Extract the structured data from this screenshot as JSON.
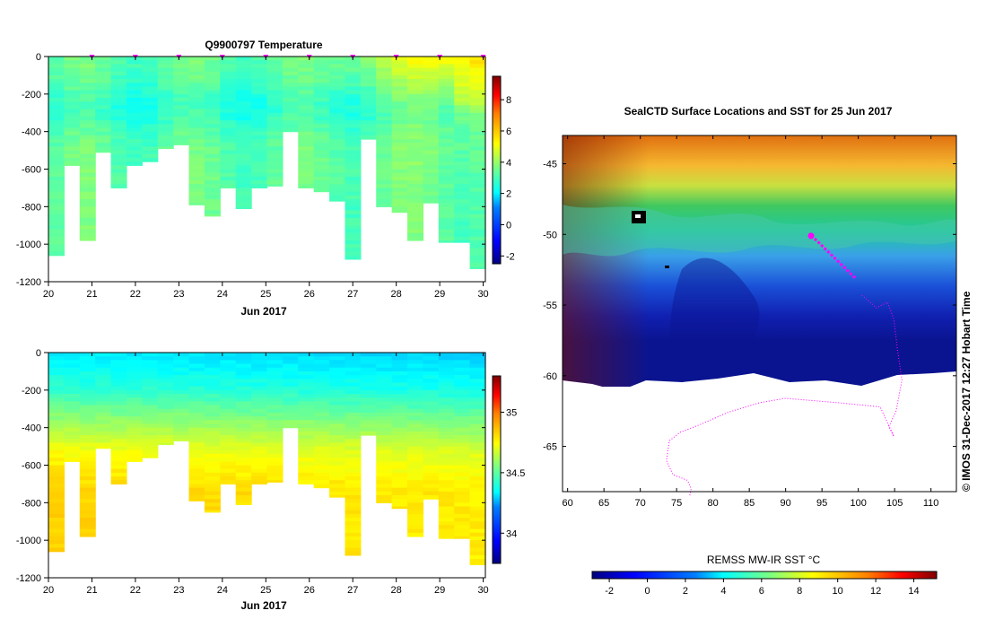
{
  "chart_data": [
    {
      "type": "heatmap",
      "title": "Q9900797  Temperature",
      "xlabel": "Jun 2017",
      "ylabel": "",
      "x_ticks": [
        "20",
        "21",
        "22",
        "23",
        "24",
        "25",
        "26",
        "27",
        "28",
        "29",
        "30"
      ],
      "xlim": [
        20,
        30.05
      ],
      "y_ticks": [
        "0",
        "-200",
        "-400",
        "-600",
        "-800",
        "-1000",
        "-1200"
      ],
      "ylim": [
        -1200,
        0
      ],
      "colorbar": {
        "ticks": [
          "8",
          "6",
          "4",
          "2",
          "0",
          "-2"
        ],
        "range": [
          -2.5,
          9.5
        ]
      },
      "profile_markers_day": [
        21,
        22,
        23,
        24,
        25,
        26,
        27,
        28,
        29,
        30
      ],
      "profile_bottom_depth_m": [
        1060,
        580,
        980,
        510,
        700,
        580,
        560,
        490,
        470,
        790,
        850,
        700,
        810,
        700,
        690,
        400,
        700,
        720,
        770,
        1080,
        440,
        800,
        830,
        980,
        780,
        990,
        990,
        1130
      ]
    },
    {
      "type": "heatmap",
      "title": "",
      "xlabel": "Jun 2017",
      "ylabel": "",
      "x_ticks": [
        "20",
        "21",
        "22",
        "23",
        "24",
        "25",
        "26",
        "27",
        "28",
        "29",
        "30"
      ],
      "xlim": [
        20,
        30.05
      ],
      "y_ticks": [
        "0",
        "-200",
        "-400",
        "-600",
        "-800",
        "-1000",
        "-1200"
      ],
      "ylim": [
        -1200,
        0
      ],
      "colorbar": {
        "ticks": [
          "35",
          "34.5",
          "34"
        ],
        "range": [
          33.75,
          35.3
        ]
      },
      "profile_bottom_depth_m": [
        1060,
        580,
        980,
        510,
        700,
        580,
        560,
        490,
        470,
        790,
        850,
        700,
        810,
        700,
        690,
        400,
        700,
        720,
        770,
        1080,
        440,
        800,
        830,
        980,
        780,
        990,
        990,
        1130
      ]
    },
    {
      "type": "heatmap",
      "title": "SealCTD Surface Locations and SST for 25 Jun 2017",
      "xlabel": "",
      "ylabel": "",
      "x_ticks": [
        "60",
        "65",
        "70",
        "75",
        "80",
        "85",
        "90",
        "95",
        "100",
        "105",
        "110"
      ],
      "xlim": [
        59.3,
        113.5
      ],
      "y_ticks": [
        "-45",
        "-50",
        "-55",
        "-60",
        "-65"
      ],
      "ylim": [
        -68.2,
        -43.0
      ],
      "colorbar": {
        "label": "REMSS MW-IR SST °C",
        "ticks": [
          "-2",
          "0",
          "2",
          "4",
          "6",
          "8",
          "10",
          "12",
          "14"
        ],
        "range": [
          -2.9,
          15.2
        ]
      },
      "seal_track": [
        [
          93.5,
          -50.1
        ],
        [
          94.2,
          -50.4
        ],
        [
          95.0,
          -50.8
        ],
        [
          96.0,
          -51.3
        ],
        [
          97.0,
          -51.8
        ],
        [
          98.0,
          -52.3
        ],
        [
          99.0,
          -52.8
        ],
        [
          99.6,
          -53.1
        ]
      ],
      "seal_track_dotted": [
        [
          100.5,
          -54.3
        ],
        [
          102.5,
          -55.2
        ],
        [
          104.0,
          -54.8
        ],
        [
          104.9,
          -56.0
        ],
        [
          105.4,
          -58.2
        ],
        [
          106.0,
          -60.3
        ],
        [
          105.2,
          -62.5
        ],
        [
          104.2,
          -63.6
        ],
        [
          104.9,
          -64.3
        ],
        [
          103.0,
          -62.2
        ],
        [
          97.0,
          -61.9
        ],
        [
          90.0,
          -61.6
        ],
        [
          86.5,
          -61.9
        ],
        [
          82.0,
          -62.6
        ],
        [
          78.5,
          -63.4
        ],
        [
          75.5,
          -64.0
        ],
        [
          74.0,
          -64.6
        ],
        [
          73.6,
          -66.0
        ],
        [
          74.5,
          -67.0
        ],
        [
          76.5,
          -67.4
        ],
        [
          77.0,
          -68.0
        ],
        [
          76.8,
          -68.5
        ]
      ]
    }
  ],
  "credit": "© IMOS 31-Dec-2017 12:27 Hobart Time",
  "colors": {
    "axis": "#000000",
    "track": "#ff00ff",
    "ice": "#ffffff",
    "cm": [
      "#00007f",
      "#0000ff",
      "#007fff",
      "#00ffff",
      "#7fff7f",
      "#ffff00",
      "#ff7f00",
      "#ff0000",
      "#7f0000"
    ]
  }
}
